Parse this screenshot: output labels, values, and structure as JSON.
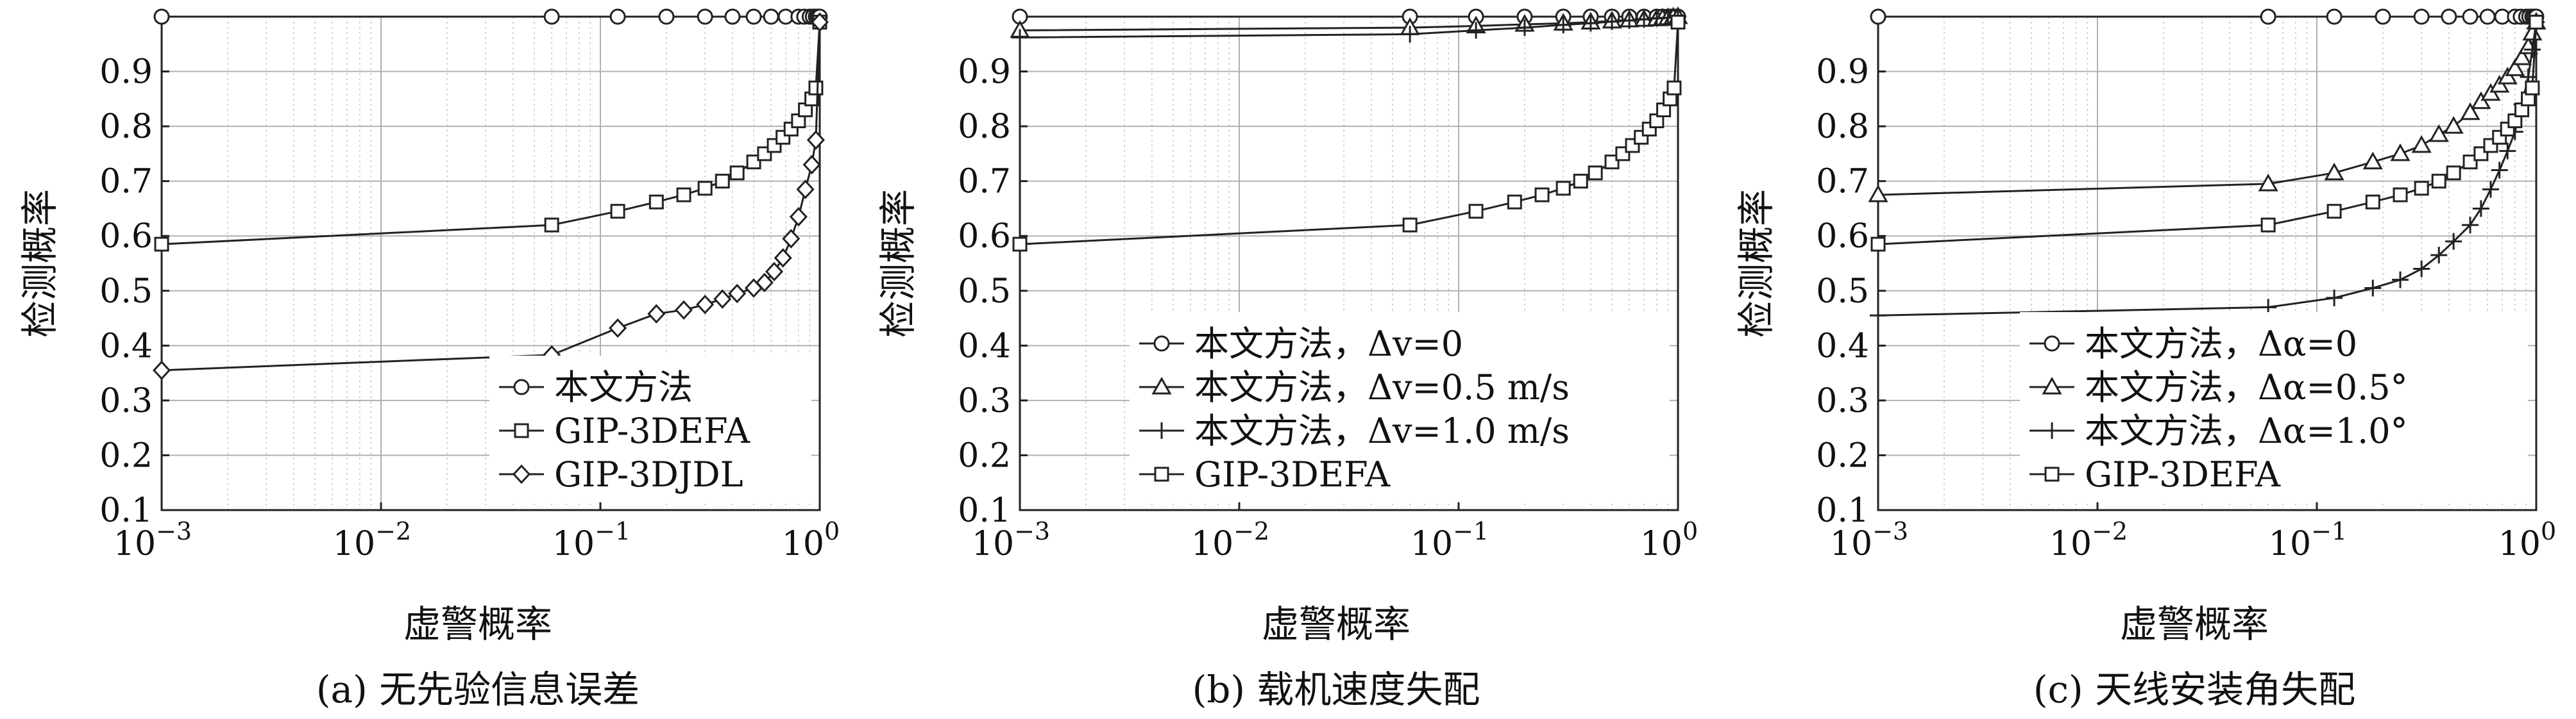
{
  "figure": {
    "panels": 3
  },
  "chart_data": [
    {
      "type": "line",
      "panel_caption": "(a) 无先验信息误差",
      "xlabel": "虚警概率",
      "ylabel": "检测概率",
      "xscale": "log",
      "xlim": [
        0.001,
        1
      ],
      "ylim": [
        0.1,
        1.0
      ],
      "xtick_labels": [
        {
          "base": "10",
          "exp": "−3"
        },
        {
          "base": "10",
          "exp": "−2"
        },
        {
          "base": "10",
          "exp": "−1"
        },
        {
          "base": "10",
          "exp": "0"
        }
      ],
      "yticks": [
        "0.1",
        "0.2",
        "0.3",
        "0.4",
        "0.5",
        "0.6",
        "0.7",
        "0.8",
        "0.9"
      ],
      "grid": true,
      "legend_position": "bottom-right",
      "series": [
        {
          "name": "本文方法",
          "marker": "circle",
          "x": [
            0.001,
            0.06,
            0.12,
            0.2,
            0.3,
            0.4,
            0.5,
            0.6,
            0.7,
            0.8,
            0.85,
            0.9,
            0.93,
            0.96,
            0.98,
            1.0
          ],
          "y": [
            1,
            1,
            1,
            1,
            1,
            1,
            1,
            1,
            1,
            1,
            1,
            1,
            1,
            1,
            1,
            1
          ]
        },
        {
          "name": "GIP-3DEFA",
          "marker": "square",
          "x": [
            0.001,
            0.06,
            0.12,
            0.18,
            0.24,
            0.3,
            0.36,
            0.42,
            0.5,
            0.56,
            0.62,
            0.68,
            0.74,
            0.8,
            0.86,
            0.92,
            0.96,
            1.0
          ],
          "y": [
            0.585,
            0.62,
            0.645,
            0.662,
            0.675,
            0.687,
            0.7,
            0.715,
            0.735,
            0.75,
            0.765,
            0.78,
            0.795,
            0.81,
            0.83,
            0.85,
            0.87,
            0.99
          ]
        },
        {
          "name": "GIP-3DJDL",
          "marker": "diamond",
          "x": [
            0.001,
            0.06,
            0.12,
            0.18,
            0.24,
            0.3,
            0.36,
            0.42,
            0.5,
            0.56,
            0.62,
            0.68,
            0.74,
            0.8,
            0.86,
            0.92,
            0.96,
            1.0
          ],
          "y": [
            0.355,
            0.383,
            0.432,
            0.458,
            0.465,
            0.475,
            0.485,
            0.495,
            0.505,
            0.515,
            0.535,
            0.56,
            0.595,
            0.635,
            0.685,
            0.73,
            0.775,
            0.99
          ]
        }
      ]
    },
    {
      "type": "line",
      "panel_caption": "(b) 载机速度失配",
      "xlabel": "虚警概率",
      "ylabel": "检测概率",
      "xscale": "log",
      "xlim": [
        0.001,
        1
      ],
      "ylim": [
        0.1,
        1.0
      ],
      "xtick_labels": [
        {
          "base": "10",
          "exp": "−3"
        },
        {
          "base": "10",
          "exp": "−2"
        },
        {
          "base": "10",
          "exp": "−1"
        },
        {
          "base": "10",
          "exp": "0"
        }
      ],
      "yticks": [
        "0.1",
        "0.2",
        "0.3",
        "0.4",
        "0.5",
        "0.6",
        "0.7",
        "0.8",
        "0.9"
      ],
      "grid": true,
      "legend_position": "bottom-right",
      "series": [
        {
          "name": "本文方法，Δv=0",
          "marker": "circle",
          "x": [
            0.001,
            0.06,
            0.12,
            0.2,
            0.3,
            0.4,
            0.5,
            0.6,
            0.7,
            0.8,
            0.85,
            0.9,
            0.93,
            0.96,
            0.98,
            1.0
          ],
          "y": [
            1,
            1,
            1,
            1,
            1,
            1,
            1,
            1,
            1,
            1,
            1,
            1,
            1,
            1,
            1,
            1
          ]
        },
        {
          "name": "本文方法，Δv=0.5 m/s",
          "marker": "triangle",
          "x": [
            0.001,
            0.06,
            0.12,
            0.2,
            0.3,
            0.4,
            0.5,
            0.6,
            0.7,
            0.8,
            0.85,
            0.9,
            0.95,
            1.0
          ],
          "y": [
            0.975,
            0.98,
            0.983,
            0.986,
            0.988,
            0.99,
            0.992,
            0.994,
            0.995,
            0.996,
            0.997,
            0.998,
            0.999,
            1.0
          ]
        },
        {
          "name": "本文方法，Δv=1.0 m/s",
          "marker": "plus",
          "x": [
            0.001,
            0.06,
            0.12,
            0.2,
            0.3,
            0.4,
            0.5,
            0.6,
            0.7,
            0.8,
            0.9,
            1.0
          ],
          "y": [
            0.962,
            0.968,
            0.975,
            0.98,
            0.985,
            0.988,
            0.991,
            0.993,
            0.995,
            0.997,
            0.998,
            1.0
          ]
        },
        {
          "name": "GIP-3DEFA",
          "marker": "square",
          "x": [
            0.001,
            0.06,
            0.12,
            0.18,
            0.24,
            0.3,
            0.36,
            0.42,
            0.5,
            0.56,
            0.62,
            0.68,
            0.74,
            0.8,
            0.86,
            0.92,
            0.96,
            1.0
          ],
          "y": [
            0.585,
            0.62,
            0.645,
            0.662,
            0.675,
            0.687,
            0.7,
            0.715,
            0.735,
            0.75,
            0.765,
            0.78,
            0.795,
            0.81,
            0.83,
            0.85,
            0.87,
            0.99
          ]
        }
      ]
    },
    {
      "type": "line",
      "panel_caption": "(c) 天线安装角失配",
      "xlabel": "虚警概率",
      "ylabel": "检测概率",
      "xscale": "log",
      "xlim": [
        0.001,
        1
      ],
      "ylim": [
        0.1,
        1.0
      ],
      "xtick_labels": [
        {
          "base": "10",
          "exp": "−3"
        },
        {
          "base": "10",
          "exp": "−2"
        },
        {
          "base": "10",
          "exp": "−1"
        },
        {
          "base": "10",
          "exp": "0"
        }
      ],
      "yticks": [
        "0.1",
        "0.2",
        "0.3",
        "0.4",
        "0.5",
        "0.6",
        "0.7",
        "0.8",
        "0.9"
      ],
      "grid": true,
      "legend_position": "bottom-right",
      "series": [
        {
          "name": "本文方法，Δα=0",
          "marker": "circle",
          "x": [
            0.001,
            0.06,
            0.12,
            0.2,
            0.3,
            0.4,
            0.5,
            0.6,
            0.7,
            0.8,
            0.85,
            0.9,
            0.93,
            0.96,
            0.98,
            1.0
          ],
          "y": [
            1,
            1,
            1,
            1,
            1,
            1,
            1,
            1,
            1,
            1,
            1,
            1,
            1,
            1,
            1,
            1
          ]
        },
        {
          "name": "本文方法，Δα=0.5°",
          "marker": "triangle",
          "x": [
            0.001,
            0.06,
            0.12,
            0.18,
            0.24,
            0.3,
            0.36,
            0.42,
            0.5,
            0.56,
            0.62,
            0.68,
            0.74,
            0.8,
            0.86,
            0.92,
            0.96,
            1.0
          ],
          "y": [
            0.675,
            0.695,
            0.715,
            0.735,
            0.75,
            0.765,
            0.785,
            0.8,
            0.825,
            0.845,
            0.86,
            0.875,
            0.89,
            0.905,
            0.925,
            0.945,
            0.97,
            0.99
          ]
        },
        {
          "name": "本文方法，Δα=1.0°",
          "marker": "plus",
          "x": [
            0.001,
            0.06,
            0.12,
            0.18,
            0.24,
            0.3,
            0.36,
            0.42,
            0.5,
            0.56,
            0.62,
            0.68,
            0.74,
            0.8,
            0.86,
            0.92,
            0.96,
            1.0
          ],
          "y": [
            0.455,
            0.47,
            0.487,
            0.505,
            0.52,
            0.54,
            0.565,
            0.59,
            0.62,
            0.65,
            0.685,
            0.72,
            0.755,
            0.79,
            0.84,
            0.89,
            0.94,
            0.99
          ]
        },
        {
          "name": "GIP-3DEFA",
          "marker": "square",
          "x": [
            0.001,
            0.06,
            0.12,
            0.18,
            0.24,
            0.3,
            0.36,
            0.42,
            0.5,
            0.56,
            0.62,
            0.68,
            0.74,
            0.8,
            0.86,
            0.92,
            0.96,
            1.0
          ],
          "y": [
            0.585,
            0.62,
            0.645,
            0.662,
            0.675,
            0.687,
            0.7,
            0.715,
            0.735,
            0.75,
            0.765,
            0.78,
            0.795,
            0.81,
            0.83,
            0.85,
            0.87,
            0.99
          ]
        }
      ]
    }
  ]
}
